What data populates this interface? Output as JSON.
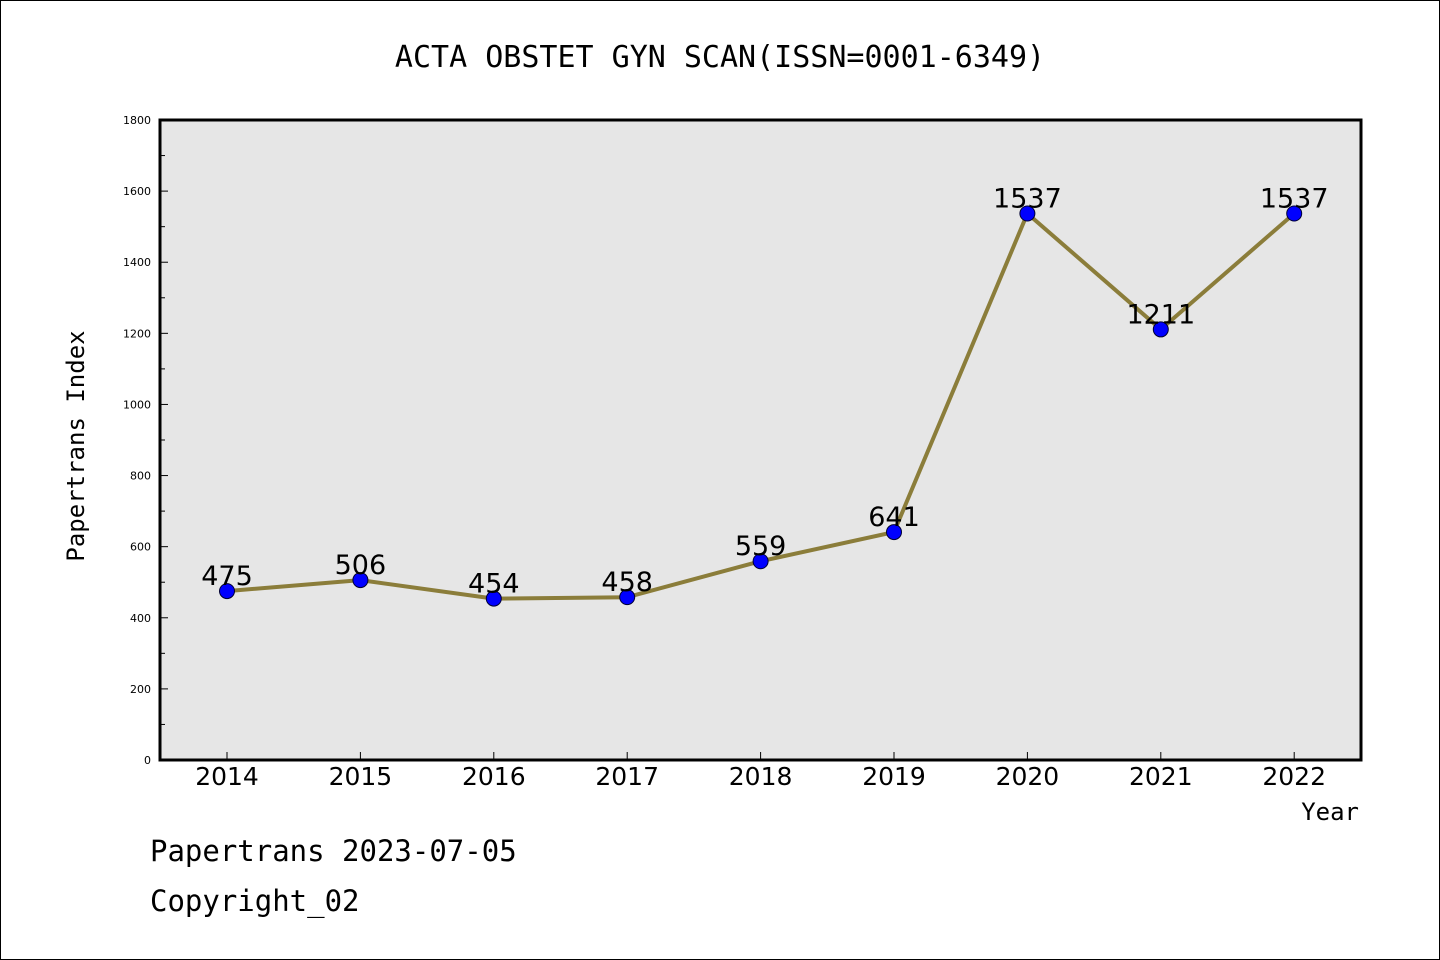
{
  "chart_data": {
    "type": "line",
    "title": "ACTA OBSTET GYN SCAN(ISSN=0001-6349)",
    "xlabel": "Year",
    "ylabel": "Papertrans Index",
    "categories": [
      "2014",
      "2015",
      "2016",
      "2017",
      "2018",
      "2019",
      "2020",
      "2021",
      "2022"
    ],
    "series": [
      {
        "values": [
          475,
          506,
          454,
          458,
          559,
          641,
          1537,
          1211,
          1537
        ]
      }
    ],
    "data_labels": [
      "475",
      "506",
      "454",
      "458",
      "559",
      "641",
      "1537",
      "1211",
      "1537"
    ],
    "ylim": [
      0,
      1800
    ],
    "yticks": [
      0,
      200,
      400,
      600,
      800,
      1000,
      1200,
      1400,
      1600,
      1800
    ],
    "ytick_labels": [
      "0",
      "200",
      "400",
      "600",
      "800",
      "1000",
      "1200",
      "1400",
      "1600",
      "1800"
    ],
    "grid": false,
    "legend": "none",
    "colors": {
      "line": "#8b7d3a",
      "marker": "#0000ff",
      "plot_background": "#e6e6e6",
      "frame": "#000000"
    }
  },
  "footer": {
    "line1": "Papertrans 2023-07-05",
    "line2": "Copyright_02"
  }
}
